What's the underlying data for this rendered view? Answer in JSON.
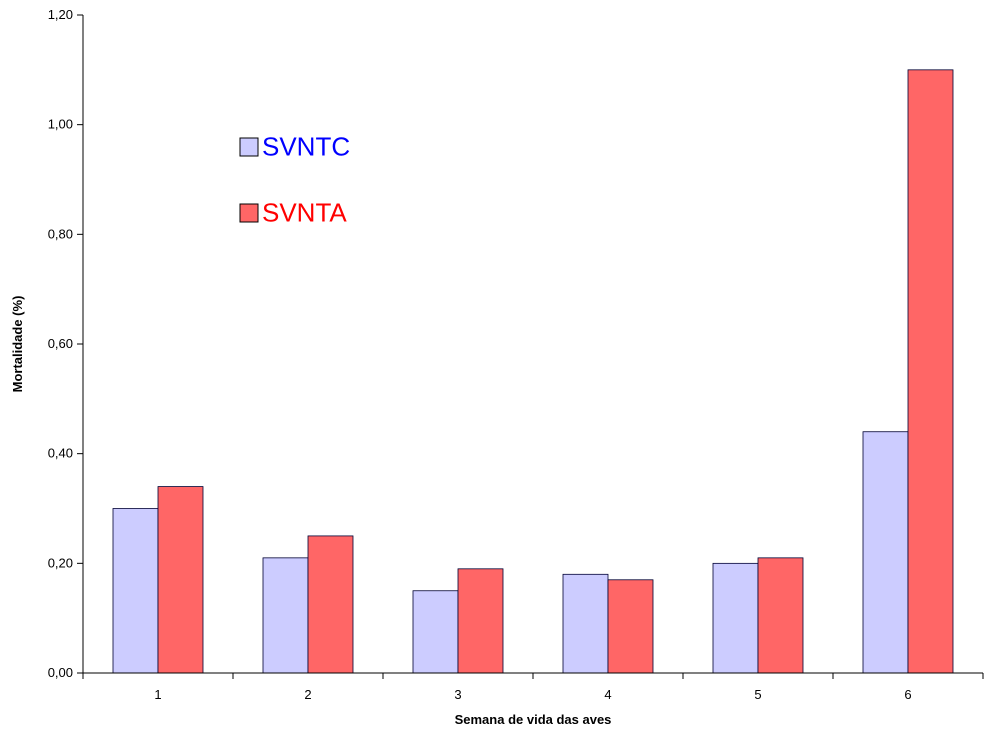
{
  "chart_data": {
    "type": "bar",
    "categories": [
      "1",
      "2",
      "3",
      "4",
      "5",
      "6"
    ],
    "series": [
      {
        "name": "SVNTC",
        "values": [
          0.3,
          0.21,
          0.15,
          0.18,
          0.2,
          0.44
        ],
        "color": "#ccccff",
        "label_color": "#0000ff"
      },
      {
        "name": "SVNTA",
        "values": [
          0.34,
          0.25,
          0.19,
          0.17,
          0.21,
          1.1
        ],
        "color": "#ff6666",
        "label_color": "#ff0000"
      }
    ],
    "xlabel": "Semana de vida das aves",
    "ylabel": "Mortalidade (%)",
    "ylim": [
      0,
      1.2
    ],
    "yticks": [
      "0,00",
      "0,20",
      "0,40",
      "0,60",
      "0,80",
      "1,00",
      "1,20"
    ],
    "ytick_values": [
      0,
      0.2,
      0.4,
      0.6,
      0.8,
      1.0,
      1.2
    ],
    "grid": false,
    "legend_position": "top-left"
  }
}
